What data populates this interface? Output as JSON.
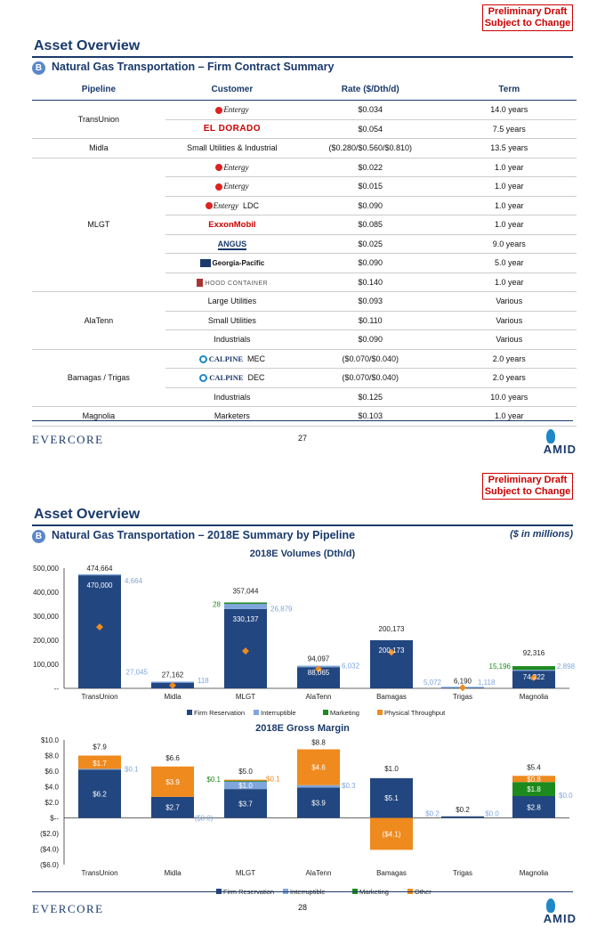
{
  "draft": {
    "line1": "Preliminary Draft",
    "line2": "Subject to Change"
  },
  "page1": {
    "title": "Asset Overview",
    "badge": "B",
    "section_title": "Natural Gas Transportation – Firm Contract Summary",
    "columns": [
      "Pipeline",
      "Customer",
      "Rate ($/Dth/d)",
      "Term"
    ],
    "rows": [
      {
        "customer_logo": "entergy-logo",
        "customer_text": "Entergy",
        "customer_suffix": "",
        "rate": "$0.034",
        "term": "14.0 years"
      },
      {
        "customer_logo": "el-dorado-logo",
        "customer_text": "EL DORADO",
        "customer_suffix": "",
        "rate": "$0.054",
        "term": "7.5 years"
      },
      {
        "customer_logo": "",
        "customer_text": "Small Utilities & Industrial",
        "customer_suffix": "",
        "rate": "($0.280/$0.560/$0.810)",
        "term": "13.5 years"
      },
      {
        "customer_logo": "entergy-logo",
        "customer_text": "Entergy",
        "customer_suffix": "",
        "rate": "$0.022",
        "term": "1.0 year"
      },
      {
        "customer_logo": "entergy-logo",
        "customer_text": "Entergy",
        "customer_suffix": "",
        "rate": "$0.015",
        "term": "1.0 year"
      },
      {
        "customer_logo": "entergy-logo",
        "customer_text": "Entergy",
        "customer_suffix": "LDC",
        "rate": "$0.090",
        "term": "1.0 year"
      },
      {
        "customer_logo": "exxonmobil-logo",
        "customer_text": "ExxonMobil",
        "customer_suffix": "",
        "rate": "$0.085",
        "term": "1.0 year"
      },
      {
        "customer_logo": "angus-logo",
        "customer_text": "ANGUS",
        "customer_suffix": "",
        "rate": "$0.025",
        "term": "9.0 years"
      },
      {
        "customer_logo": "georgia-pacific-logo",
        "customer_text": "Georgia-Pacific",
        "customer_suffix": "",
        "rate": "$0.090",
        "term": "5.0 year"
      },
      {
        "customer_logo": "hood-container-logo",
        "customer_text": "HOOD CONTAINER",
        "customer_suffix": "",
        "rate": "$0.140",
        "term": "1.0 year"
      },
      {
        "customer_logo": "",
        "customer_text": "Large Utilities",
        "customer_suffix": "",
        "rate": "$0.093",
        "term": "Various"
      },
      {
        "customer_logo": "",
        "customer_text": "Small Utilities",
        "customer_suffix": "",
        "rate": "$0.110",
        "term": "Various"
      },
      {
        "customer_logo": "",
        "customer_text": "Industrials",
        "customer_suffix": "",
        "rate": "$0.090",
        "term": "Various"
      },
      {
        "customer_logo": "calpine-logo",
        "customer_text": "CALPINE",
        "customer_suffix": "MEC",
        "rate": "($0.070/$0.040)",
        "term": "2.0 years"
      },
      {
        "customer_logo": "calpine-logo",
        "customer_text": "CALPINE",
        "customer_suffix": "DEC",
        "rate": "($0.070/$0.040)",
        "term": "2.0 years"
      },
      {
        "customer_logo": "",
        "customer_text": "Industrials",
        "customer_suffix": "",
        "rate": "$0.125",
        "term": "10.0 years"
      },
      {
        "customer_logo": "",
        "customer_text": "Marketers",
        "customer_suffix": "",
        "rate": "$0.103",
        "term": "1.0 year"
      }
    ],
    "pipelines": [
      {
        "name": "TransUnion",
        "start": 0,
        "span": 2
      },
      {
        "name": "Midla",
        "start": 2,
        "span": 1
      },
      {
        "name": "MLGT",
        "start": 3,
        "span": 7
      },
      {
        "name": "AlaTenn",
        "start": 10,
        "span": 3
      },
      {
        "name": "Bamagas / Trigas",
        "start": 13,
        "span": 3
      },
      {
        "name": "Magnolia",
        "start": 16,
        "span": 1
      }
    ],
    "page_number": "27"
  },
  "footer": {
    "brand": "EVERCORE",
    "amid": "AMID"
  },
  "page2": {
    "title": "Asset Overview",
    "badge": "B",
    "section_title": "Natural Gas Transportation – 2018E Summary by Pipeline",
    "units": "($ in millions)",
    "page_number": "28"
  },
  "colors": {
    "firm": "#22467f",
    "interruptible": "#7fa6dc",
    "marketing": "#1d8a1d",
    "throughput": "#ef8a1e",
    "other": "#ef8a1e"
  },
  "chart_data": [
    {
      "type": "bar",
      "title": "2018E Volumes (Dth/d)",
      "categories": [
        "TransUnion",
        "Midla",
        "MLGT",
        "AlaTenn",
        "Bamagas",
        "Trigas",
        "Magnolia"
      ],
      "ylim": [
        0,
        500000
      ],
      "yticks": [
        "500,000",
        "400,000",
        "300,000",
        "200,000",
        "100,000",
        "--"
      ],
      "ytick_values": [
        500000,
        400000,
        300000,
        200000,
        100000,
        0
      ],
      "series": [
        {
          "name": "Firm Reservation",
          "values": [
            470000,
            27045,
            330137,
            88065,
            200173,
            5072,
            74222
          ],
          "labels": [
            "470,000",
            "27,045",
            "330,137",
            "88,065",
            "200,173",
            "5,072",
            "74,222"
          ]
        },
        {
          "name": "Interruptible",
          "values": [
            4664,
            118,
            26879,
            6032,
            0,
            1118,
            2898
          ],
          "labels": [
            "4,664",
            "118",
            "26,879",
            "6,032",
            "",
            "1,118",
            "2,898"
          ]
        },
        {
          "name": "Marketing",
          "values": [
            0,
            0,
            28,
            0,
            0,
            0,
            15196
          ],
          "labels": [
            "",
            "",
            "28",
            "",
            "",
            "",
            "15,196"
          ]
        },
        {
          "name": "Physical Throughput",
          "values": [
            255000,
            12000,
            155000,
            80000,
            150000,
            3000,
            45000
          ]
        }
      ],
      "totals": [
        "474,664",
        "27,162",
        "357,044",
        "94,097",
        "200,173",
        "6,190",
        "92,316"
      ]
    },
    {
      "type": "bar",
      "title": "2018E Gross Margin",
      "categories": [
        "TransUnion",
        "Midla",
        "MLGT",
        "AlaTenn",
        "Bamagas",
        "Trigas",
        "Magnolia"
      ],
      "ylim": [
        -6,
        10
      ],
      "yticks": [
        "$10.0",
        "$8.0",
        "$6.0",
        "$4.0",
        "$2.0",
        "$--",
        "($2.0)",
        "($4.0)",
        "($6.0)"
      ],
      "ytick_values": [
        10,
        8,
        6,
        4,
        2,
        0,
        -2,
        -4,
        -6
      ],
      "series": [
        {
          "name": "Firm Reservation",
          "values": [
            6.2,
            2.7,
            3.7,
            3.9,
            5.1,
            0.2,
            2.8
          ],
          "labels": [
            "$6.2",
            "$2.7",
            "$3.7",
            "$3.9",
            "$5.1",
            "$0.2",
            "$2.8"
          ]
        },
        {
          "name": "Interruptible",
          "values": [
            0.1,
            0.0,
            1.0,
            0.3,
            0.0,
            0.0,
            0.0
          ],
          "labels": [
            "$0.1",
            "($0.0)",
            "$1.0",
            "$0.3",
            "",
            "$0.0",
            "$0.0"
          ]
        },
        {
          "name": "Marketing",
          "values": [
            0,
            0,
            0.1,
            0,
            0,
            0,
            1.8
          ],
          "labels": [
            "",
            "",
            "$0.1",
            "",
            "",
            "",
            "$1.8"
          ]
        },
        {
          "name": "Other",
          "values": [
            1.7,
            3.9,
            0.1,
            4.6,
            -4.1,
            0,
            0.8
          ],
          "labels": [
            "$1.7",
            "$3.9",
            "$0.1",
            "$4.6",
            "($4.1)",
            "",
            "$0.8"
          ]
        }
      ],
      "totals": [
        "$7.9",
        "$6.6",
        "$5.0",
        "$8.8",
        "$1.0",
        "$0.2",
        "$5.4"
      ]
    }
  ]
}
